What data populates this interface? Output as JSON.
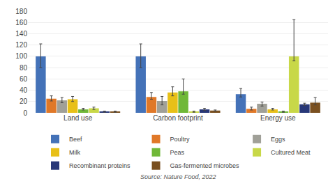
{
  "chart_data": {
    "type": "bar",
    "categories": [
      "Land use",
      "Carbon footprint",
      "Energy use"
    ],
    "series": [
      {
        "name": "Beef",
        "color": "#4472b8",
        "values": [
          100,
          100,
          33
        ],
        "errors_low": [
          20,
          20,
          5
        ],
        "errors_high": [
          22,
          22,
          10
        ]
      },
      {
        "name": "Poultry",
        "color": "#e07828",
        "values": [
          25,
          28,
          7
        ],
        "errors_low": [
          4,
          4,
          2
        ],
        "errors_high": [
          5,
          8,
          3
        ]
      },
      {
        "name": "Eggs",
        "color": "#a0a098",
        "values": [
          22,
          21,
          16
        ],
        "errors_low": [
          4,
          7,
          4
        ],
        "errors_high": [
          5,
          8,
          3
        ]
      },
      {
        "name": "Milk",
        "color": "#e8c018",
        "values": [
          24,
          36,
          6
        ],
        "errors_low": [
          4,
          6,
          1
        ],
        "errors_high": [
          5,
          10,
          2
        ]
      },
      {
        "name": "Peas",
        "color": "#70b838",
        "values": [
          6,
          38,
          2
        ],
        "errors_low": [
          1,
          5,
          1
        ],
        "errors_high": [
          2,
          22,
          1
        ]
      },
      {
        "name": "Cultured Meat",
        "color": "#c8d848",
        "values": [
          8,
          2,
          100
        ],
        "errors_low": [
          2,
          1,
          8
        ],
        "errors_high": [
          2,
          1,
          65
        ]
      },
      {
        "name": "Recombinant proteins",
        "color": "#283878",
        "values": [
          2,
          6,
          15
        ],
        "errors_low": [
          1,
          2,
          2
        ],
        "errors_high": [
          1,
          2,
          2
        ]
      },
      {
        "name": "Gas-fermented microbes",
        "color": "#7a5020",
        "values": [
          2,
          4,
          18
        ],
        "errors_low": [
          1,
          1,
          4
        ],
        "errors_high": [
          1,
          1,
          9
        ]
      }
    ],
    "ylim": [
      0,
      180
    ],
    "yticks": [
      0,
      20,
      40,
      60,
      80,
      100,
      120,
      140,
      160,
      180
    ],
    "grid": true,
    "legend": "bottom",
    "annotations": [
      "Source: Nature Food, 2022"
    ]
  }
}
